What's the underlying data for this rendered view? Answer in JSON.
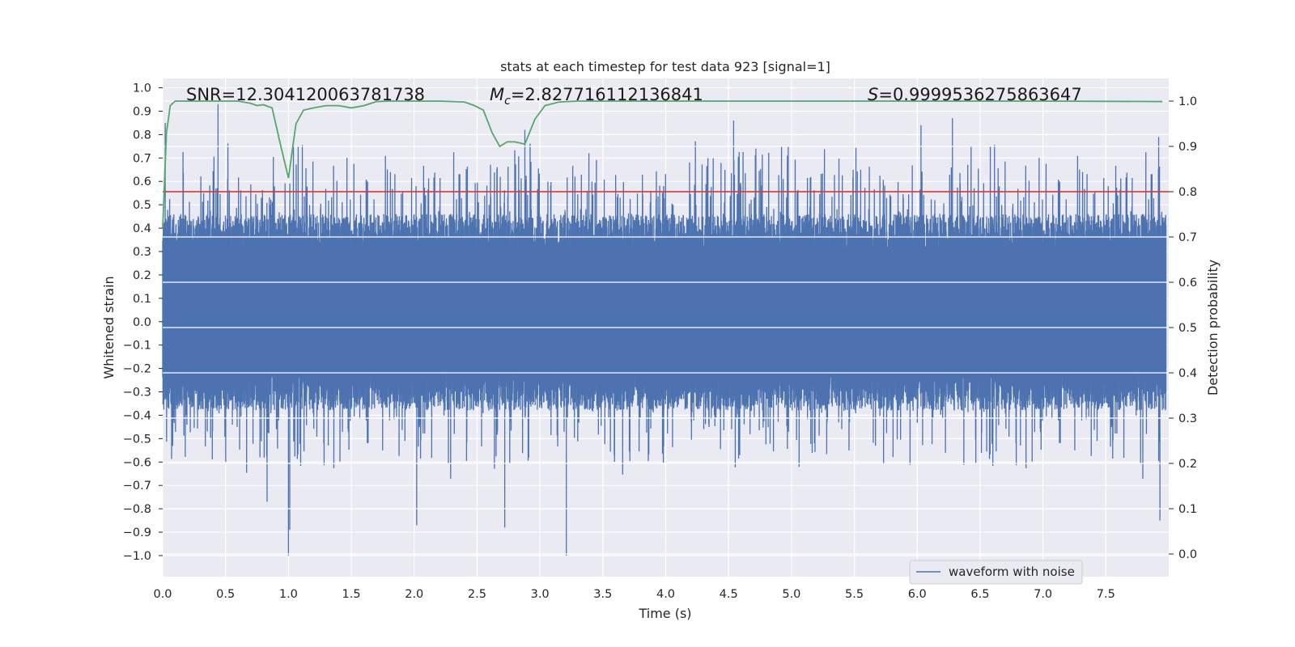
{
  "chart_data": {
    "type": "line",
    "title": "stats at each timestep for test data 923 [signal=1]",
    "xlabel": "Time (s)",
    "ylabel": "Whitened strain",
    "y2label": "Detection probability",
    "xlim": [
      0.0,
      8.0
    ],
    "ylim": [
      -1.09,
      1.04
    ],
    "y2lim": [
      -0.05,
      1.05
    ],
    "xticks": [
      "0.0",
      "0.5",
      "1.0",
      "1.5",
      "2.0",
      "2.5",
      "3.0",
      "3.5",
      "4.0",
      "4.5",
      "5.0",
      "5.5",
      "6.0",
      "6.5",
      "7.0",
      "7.5"
    ],
    "xtick_values": [
      0.0,
      0.5,
      1.0,
      1.5,
      2.0,
      2.5,
      3.0,
      3.5,
      4.0,
      4.5,
      5.0,
      5.5,
      6.0,
      6.5,
      7.0,
      7.5
    ],
    "yticks": [
      "1.0",
      "0.9",
      "0.8",
      "0.7",
      "0.6",
      "0.5",
      "0.4",
      "0.3",
      "0.2",
      "0.1",
      "0.0",
      "−0.1",
      "−0.2",
      "−0.3",
      "−0.4",
      "−0.5",
      "−0.6",
      "−0.7",
      "−0.8",
      "−0.9",
      "−1.0"
    ],
    "ytick_values": [
      1.0,
      0.9,
      0.8,
      0.7,
      0.6,
      0.5,
      0.4,
      0.3,
      0.2,
      0.1,
      0.0,
      -0.1,
      -0.2,
      -0.3,
      -0.4,
      -0.5,
      -0.6,
      -0.7,
      -0.8,
      -0.9,
      -1.0
    ],
    "y2ticks": [
      "1.0",
      "0.9",
      "0.8",
      "0.7",
      "0.6",
      "0.5",
      "0.4",
      "0.3",
      "0.2",
      "0.1",
      "0.0"
    ],
    "y2tick_values": [
      1.0,
      0.9,
      0.8,
      0.7,
      0.6,
      0.5,
      0.4,
      0.3,
      0.2,
      0.1,
      0.0
    ],
    "annotations": {
      "snr": "SNR=12.304120063781738",
      "mc_symbol": "M",
      "mc_sub": "c",
      "mc_value": "=2.827716112136841",
      "s_symbol": "S",
      "s_value": "=0.9999536275863647"
    },
    "threshold": {
      "value": 0.8,
      "axis": "y2",
      "color": "#d62728"
    },
    "legend": {
      "label": "waveform with noise",
      "location": "lower-right"
    },
    "series": [
      {
        "name": "waveform with noise",
        "axis": "y",
        "color": "#4c72b0",
        "style": "dense noise, typical range about -0.45 to 0.45 with spikes reaching about ±1.0",
        "peaks": [
          {
            "x": 0.02,
            "y": 0.85
          },
          {
            "x": 0.44,
            "y": 0.93
          },
          {
            "x": 1.0,
            "y": -1.0
          },
          {
            "x": 1.01,
            "y": -0.89
          },
          {
            "x": 0.83,
            "y": -0.77
          },
          {
            "x": 2.02,
            "y": -0.87
          },
          {
            "x": 2.72,
            "y": -0.88
          },
          {
            "x": 2.88,
            "y": 0.82
          },
          {
            "x": 3.21,
            "y": -1.0
          },
          {
            "x": 4.54,
            "y": 0.86
          },
          {
            "x": 6.28,
            "y": 0.87
          },
          {
            "x": 6.03,
            "y": 0.84
          },
          {
            "x": 7.93,
            "y": -0.85
          },
          {
            "x": 7.92,
            "y": 0.79
          }
        ]
      },
      {
        "name": "detection probability",
        "axis": "y2",
        "color": "#55a868",
        "x": [
          0.0,
          0.03,
          0.06,
          0.1,
          0.15,
          0.2,
          0.3,
          0.45,
          0.6,
          0.7,
          0.75,
          0.8,
          0.87,
          0.94,
          1.0,
          1.06,
          1.12,
          1.2,
          1.3,
          1.4,
          1.5,
          1.6,
          1.7,
          1.8,
          2.0,
          2.2,
          2.4,
          2.48,
          2.55,
          2.62,
          2.68,
          2.74,
          2.8,
          2.88,
          2.96,
          3.04,
          3.15,
          3.3,
          3.5,
          4.0,
          5.0,
          6.0,
          7.0,
          7.95
        ],
        "values": [
          0.72,
          0.93,
          0.99,
          1.0,
          1.0,
          1.0,
          1.0,
          1.0,
          1.0,
          0.995,
          0.99,
          0.992,
          0.985,
          0.9,
          0.83,
          0.95,
          0.98,
          0.985,
          0.99,
          0.99,
          0.985,
          0.99,
          0.999,
          1.0,
          1.0,
          1.0,
          0.998,
          0.99,
          0.98,
          0.93,
          0.9,
          0.91,
          0.91,
          0.905,
          0.96,
          0.99,
          0.998,
          1.0,
          1.0,
          1.0,
          1.0,
          1.0,
          1.0,
          0.999
        ]
      }
    ]
  }
}
